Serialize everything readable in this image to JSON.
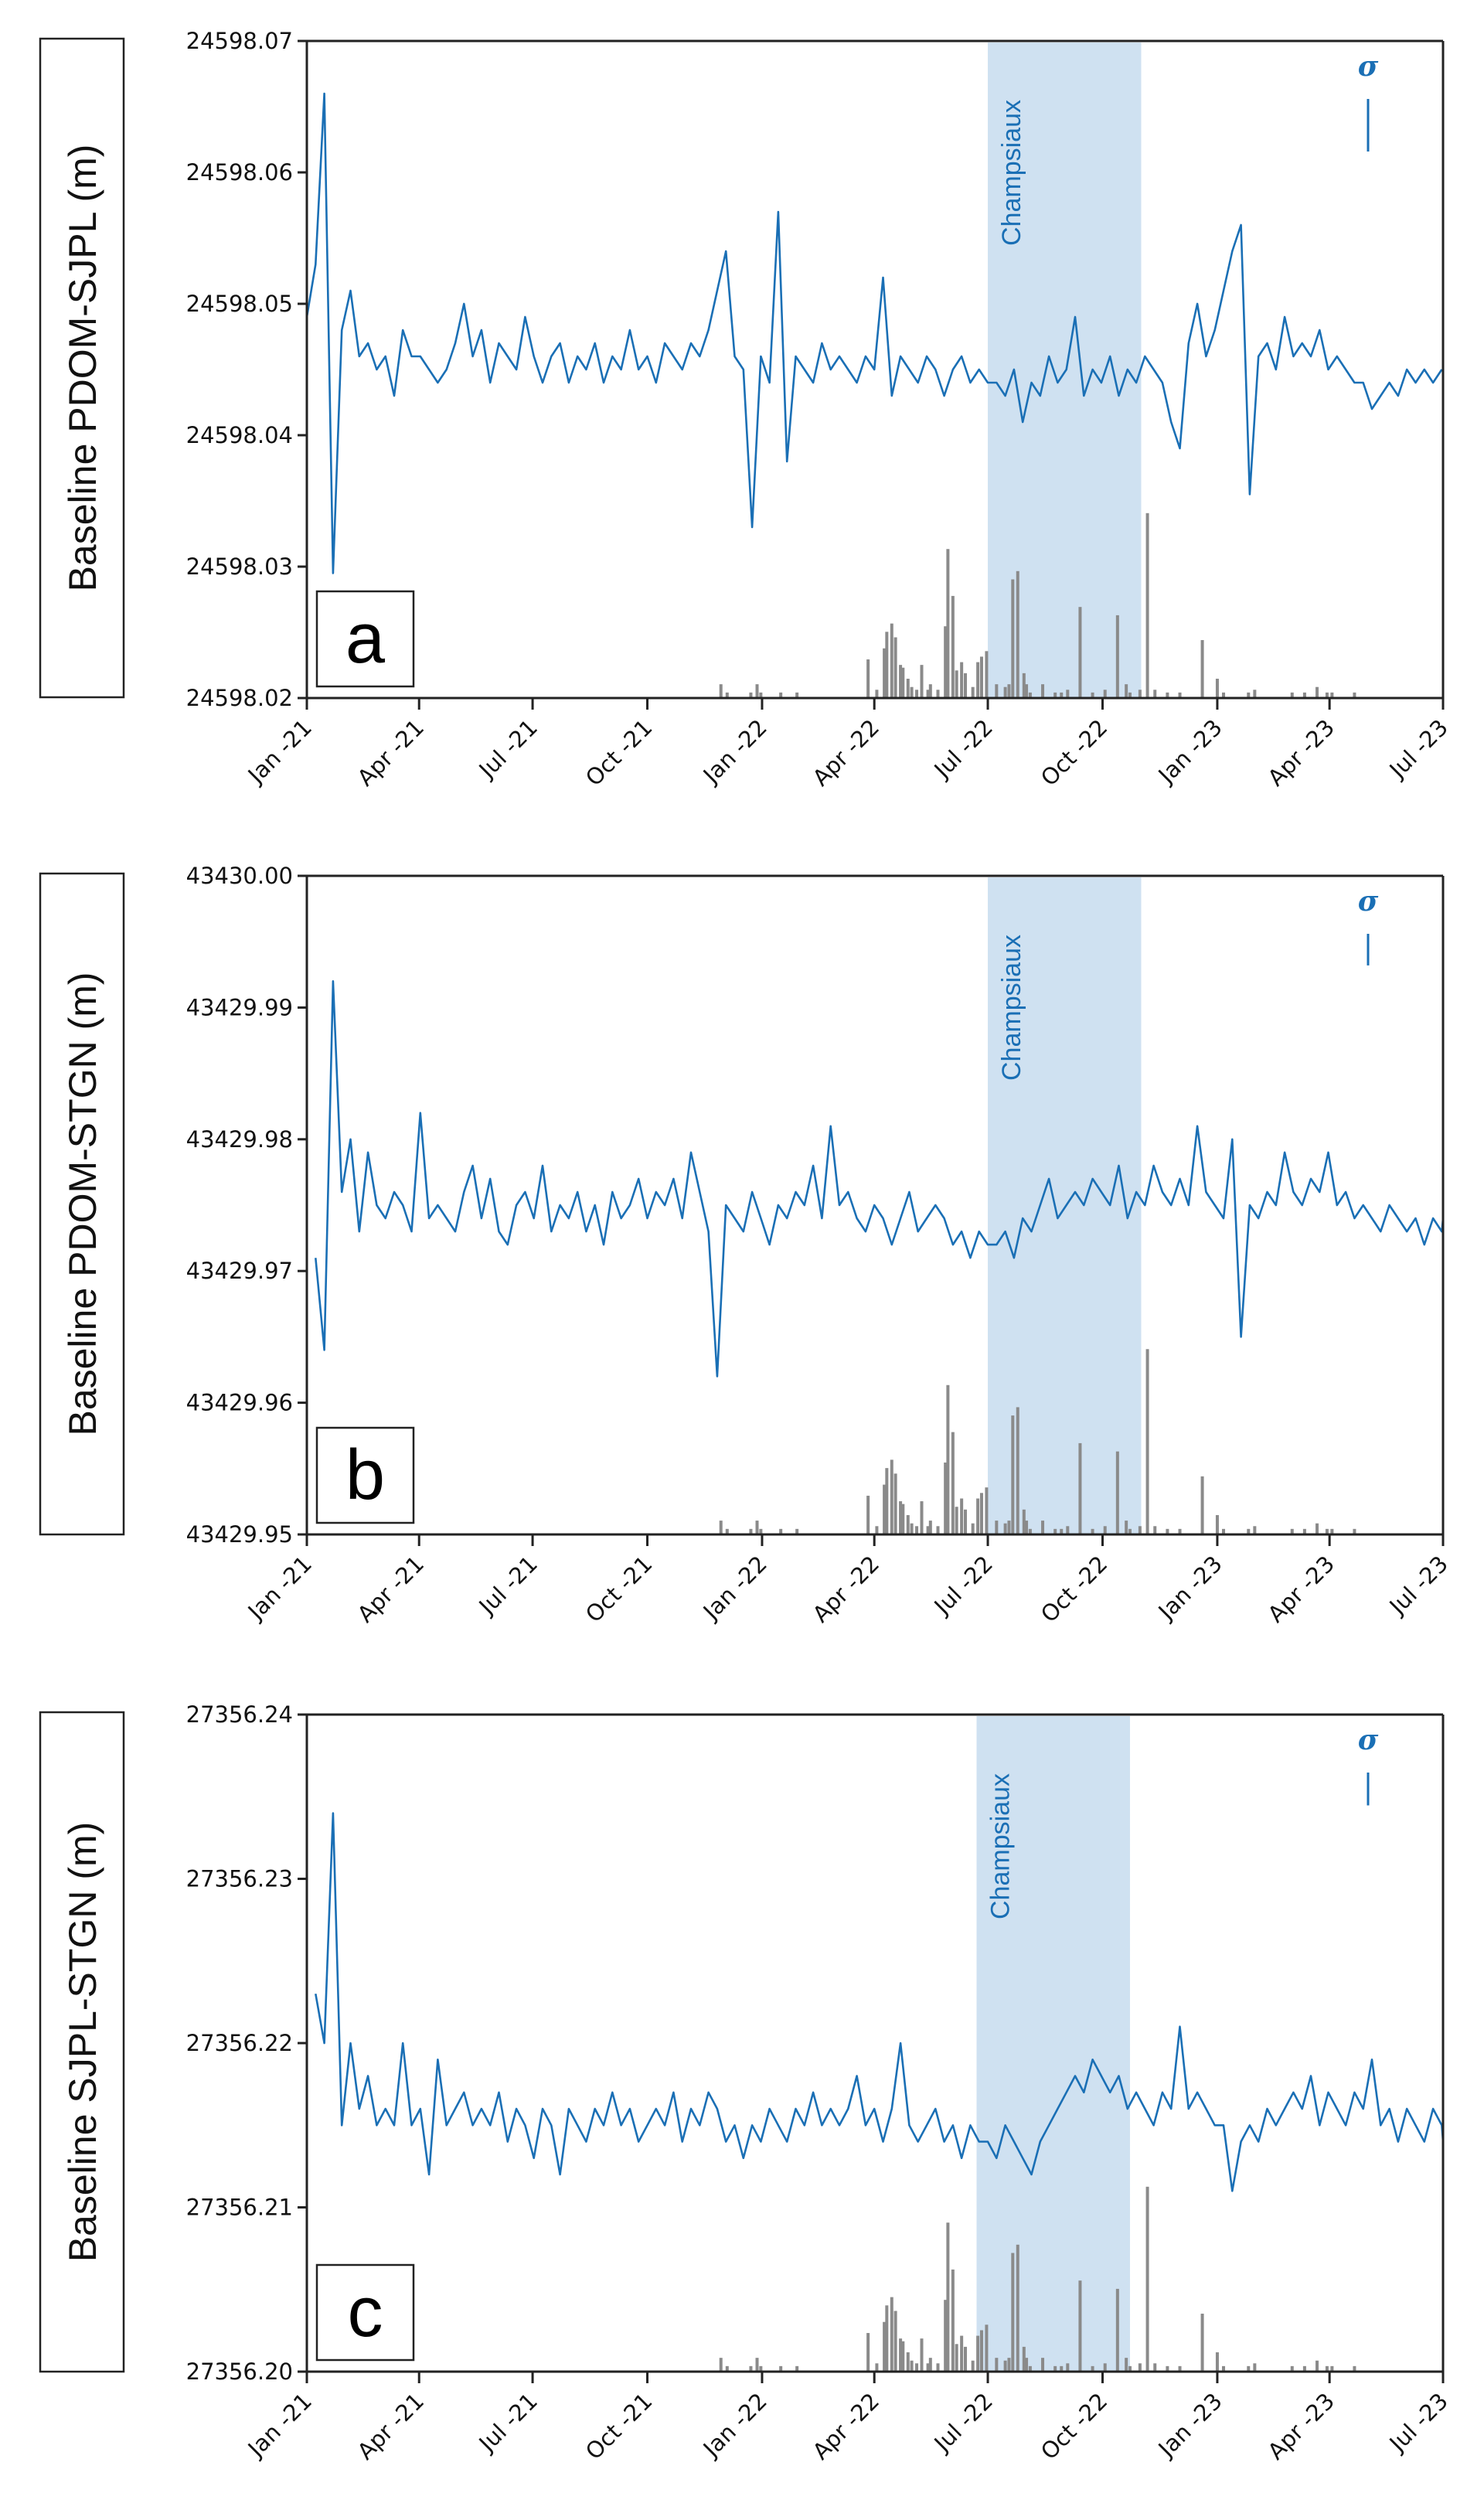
{
  "chart_data": [
    {
      "type": "line",
      "panel_letter": "a",
      "ylabel": "Baseline PDOM-SJPL (m)",
      "ylim": [
        24598.02,
        24598.07
      ],
      "yticks": [
        "24598.02",
        "24598.03",
        "24598.04",
        "24598.05",
        "24598.06",
        "24598.07"
      ],
      "xticks": [
        "Jan -21",
        "Apr -21",
        "Jul -21",
        "Oct -21",
        "Jan -22",
        "Apr -22",
        "Jul -22",
        "Oct -22",
        "Jan -23",
        "Apr -23",
        "Jul -23"
      ],
      "xlim_days": [
        0,
        911
      ],
      "shaded_region": {
        "label": "Champsiaux",
        "start_day": 546,
        "end_day": 669
      },
      "sigma": {
        "label": "σ",
        "value_m": 0.004
      },
      "series": [
        {
          "name": "baseline",
          "x_start_day": 0,
          "x_step_days": 7,
          "values": [
            24598.049,
            24598.053,
            24598.066,
            24598.0295,
            24598.048,
            24598.051,
            24598.046,
            24598.047,
            24598.045,
            24598.046,
            24598.043,
            24598.048,
            24598.046,
            24598.046,
            24598.045,
            24598.044,
            24598.045,
            24598.047,
            24598.05,
            24598.046,
            24598.048,
            24598.044,
            24598.047,
            24598.046,
            24598.045,
            24598.049,
            24598.046,
            24598.044,
            24598.046,
            24598.047,
            24598.044,
            24598.046,
            24598.045,
            24598.047,
            24598.044,
            24598.046,
            24598.045,
            24598.048,
            24598.045,
            24598.046,
            24598.044,
            24598.047,
            24598.046,
            24598.045,
            24598.047,
            24598.046,
            24598.048,
            24598.051,
            24598.054,
            24598.046,
            24598.045,
            24598.033,
            24598.046,
            24598.044,
            24598.057,
            24598.038,
            24598.046,
            24598.045,
            24598.044,
            24598.047,
            24598.045,
            24598.046,
            24598.045,
            24598.044,
            24598.046,
            24598.045,
            24598.052,
            24598.043,
            24598.046,
            24598.045,
            24598.044,
            24598.046,
            24598.045,
            24598.043,
            24598.045,
            24598.046,
            24598.044,
            24598.045,
            24598.044,
            24598.044,
            24598.043,
            24598.045,
            24598.041,
            24598.044,
            24598.043,
            24598.046,
            24598.044,
            24598.045,
            24598.049,
            24598.043,
            24598.045,
            24598.044,
            24598.046,
            24598.043,
            24598.045,
            24598.044,
            24598.046,
            24598.045,
            24598.044,
            24598.041,
            24598.039,
            24598.047,
            24598.05,
            24598.046,
            24598.048,
            24598.051,
            24598.054,
            24598.056,
            24598.0355,
            24598.046,
            24598.047,
            24598.045,
            24598.049,
            24598.046,
            24598.047,
            24598.046,
            24598.048,
            24598.045,
            24598.046,
            24598.045,
            24598.044,
            24598.044,
            24598.042,
            24598.043,
            24598.044,
            24598.043,
            24598.045,
            24598.044,
            24598.045,
            24598.044,
            24598.045
          ]
        }
      ]
    },
    {
      "type": "line",
      "panel_letter": "b",
      "ylabel": "Baseline PDOM-STGN (m)",
      "ylim": [
        43429.95,
        43430.0
      ],
      "yticks": [
        "43429.95",
        "43429.96",
        "43429.97",
        "43429.98",
        "43429.99",
        "43430.00"
      ],
      "xticks": [
        "Jan -21",
        "Apr -21",
        "Jul -21",
        "Oct -21",
        "Jan -22",
        "Apr -22",
        "Jul -22",
        "Oct -22",
        "Jan -23",
        "Apr -23",
        "Jul -23"
      ],
      "xlim_days": [
        0,
        911
      ],
      "shaded_region": {
        "label": "Champsiaux",
        "start_day": 546,
        "end_day": 669
      },
      "sigma": {
        "label": "σ",
        "value_m": 0.0024
      },
      "series": [
        {
          "name": "baseline",
          "x_start_day": 7,
          "x_step_days": 7,
          "values": [
            43429.971,
            43429.964,
            43429.992,
            43429.976,
            43429.98,
            43429.973,
            43429.979,
            43429.975,
            43429.974,
            43429.976,
            43429.975,
            43429.973,
            43429.982,
            43429.974,
            43429.975,
            43429.974,
            43429.973,
            43429.976,
            43429.978,
            43429.974,
            43429.977,
            43429.973,
            43429.972,
            43429.975,
            43429.976,
            43429.974,
            43429.978,
            43429.973,
            43429.975,
            43429.974,
            43429.976,
            43429.973,
            43429.975,
            43429.972,
            43429.976,
            43429.974,
            43429.975,
            43429.977,
            43429.974,
            43429.976,
            43429.975,
            43429.977,
            43429.974,
            43429.979,
            43429.976,
            43429.973,
            43429.962,
            43429.975,
            43429.974,
            43429.973,
            43429.976,
            43429.974,
            43429.972,
            43429.975,
            43429.974,
            43429.976,
            43429.975,
            43429.978,
            43429.974,
            43429.981,
            43429.975,
            43429.976,
            43429.974,
            43429.973,
            43429.975,
            43429.974,
            43429.972,
            43429.974,
            43429.976,
            43429.973,
            43429.974,
            43429.975,
            43429.974,
            43429.972,
            43429.973,
            43429.971,
            43429.973,
            43429.972,
            43429.972,
            43429.973,
            43429.971,
            43429.974,
            43429.973,
            43429.975,
            43429.977,
            43429.974,
            43429.975,
            43429.976,
            43429.975,
            43429.977,
            43429.976,
            43429.975,
            43429.978,
            43429.974,
            43429.976,
            43429.975,
            43429.978,
            43429.976,
            43429.975,
            43429.977,
            43429.975,
            43429.981,
            43429.976,
            43429.975,
            43429.974,
            43429.98,
            43429.965,
            43429.975,
            43429.974,
            43429.976,
            43429.975,
            43429.979,
            43429.976,
            43429.975,
            43429.977,
            43429.976,
            43429.979,
            43429.975,
            43429.976,
            43429.974,
            43429.975,
            43429.974,
            43429.973,
            43429.975,
            43429.974,
            43429.973,
            43429.974,
            43429.972,
            43429.974,
            43429.973,
            43429.974
          ]
        }
      ]
    },
    {
      "type": "line",
      "panel_letter": "c",
      "ylabel": "Baseline SJPL-STGN (m)",
      "ylim": [
        27356.2,
        27356.24
      ],
      "yticks": [
        "27356.20",
        "27356.21",
        "27356.22",
        "27356.23",
        "27356.24"
      ],
      "xticks": [
        "Jan -21",
        "Apr -21",
        "Jul -21",
        "Oct -21",
        "Jan -22",
        "Apr -22",
        "Jul -22",
        "Oct -22",
        "Jan -23",
        "Apr -23",
        "Jul -23"
      ],
      "xlim_days": [
        0,
        911
      ],
      "shaded_region": {
        "label": "Champsiaux",
        "start_day": 537,
        "end_day": 660
      },
      "sigma": {
        "label": "σ",
        "value_m": 0.002
      },
      "series": [
        {
          "name": "baseline",
          "x_start_day": 7,
          "x_step_days": 7,
          "values": [
            27356.223,
            27356.22,
            27356.234,
            27356.215,
            27356.22,
            27356.216,
            27356.218,
            27356.215,
            27356.216,
            27356.215,
            27356.22,
            27356.215,
            27356.216,
            27356.212,
            27356.219,
            27356.215,
            27356.216,
            27356.217,
            27356.215,
            27356.216,
            27356.215,
            27356.217,
            27356.214,
            27356.216,
            27356.215,
            27356.213,
            27356.216,
            27356.215,
            27356.212,
            27356.216,
            27356.215,
            27356.214,
            27356.216,
            27356.215,
            27356.217,
            27356.215,
            27356.216,
            27356.214,
            27356.215,
            27356.216,
            27356.215,
            27356.217,
            27356.214,
            27356.216,
            27356.215,
            27356.217,
            27356.216,
            27356.214,
            27356.215,
            27356.213,
            27356.215,
            27356.214,
            27356.216,
            27356.215,
            27356.214,
            27356.216,
            27356.215,
            27356.217,
            27356.215,
            27356.216,
            27356.215,
            27356.216,
            27356.218,
            27356.215,
            27356.216,
            27356.214,
            27356.216,
            27356.22,
            27356.215,
            27356.214,
            27356.215,
            27356.216,
            27356.214,
            27356.215,
            27356.213,
            27356.215,
            27356.214,
            27356.214,
            27356.213,
            27356.215,
            27356.214,
            27356.213,
            27356.212,
            27356.214,
            27356.215,
            27356.216,
            27356.217,
            27356.218,
            27356.217,
            27356.219,
            27356.218,
            27356.217,
            27356.218,
            27356.216,
            27356.217,
            27356.216,
            27356.215,
            27356.217,
            27356.216,
            27356.221,
            27356.216,
            27356.217,
            27356.216,
            27356.215,
            27356.215,
            27356.211,
            27356.214,
            27356.215,
            27356.214,
            27356.216,
            27356.215,
            27356.216,
            27356.217,
            27356.216,
            27356.218,
            27356.215,
            27356.217,
            27356.216,
            27356.215,
            27356.217,
            27356.216,
            27356.219,
            27356.215,
            27356.216,
            27356.214,
            27356.216,
            27356.215,
            27356.214,
            27356.216,
            27356.215,
            27356.214
          ]
        }
      ]
    }
  ],
  "bars": {
    "color": "#8a8a8a",
    "note_fraction_of_axis": "bar heights as fraction of panel height",
    "days": [
      332,
      337,
      356,
      361,
      364,
      380,
      393,
      450,
      457,
      463,
      465,
      469,
      472,
      476,
      478,
      482,
      485,
      489,
      493,
      498,
      500,
      506,
      512,
      514,
      518,
      521,
      525,
      528,
      534,
      538,
      541,
      545,
      553,
      560,
      563,
      566,
      570,
      575,
      577,
      580,
      590,
      600,
      605,
      610,
      620,
      630,
      640,
      650,
      657,
      660,
      668,
      674,
      680,
      690,
      700,
      718,
      730,
      735,
      755,
      760,
      790,
      800,
      810,
      818,
      822,
      840
    ],
    "values": [
      0.05,
      0.02,
      0.02,
      0.05,
      0.02,
      0.02,
      0.02,
      0.14,
      0.03,
      0.18,
      0.24,
      0.27,
      0.22,
      0.12,
      0.11,
      0.07,
      0.04,
      0.03,
      0.12,
      0.03,
      0.05,
      0.03,
      0.26,
      0.54,
      0.37,
      0.1,
      0.13,
      0.09,
      0.04,
      0.13,
      0.15,
      0.17,
      0.05,
      0.04,
      0.05,
      0.43,
      0.46,
      0.09,
      0.05,
      0.02,
      0.05,
      0.02,
      0.02,
      0.03,
      0.33,
      0.02,
      0.03,
      0.3,
      0.05,
      0.02,
      0.03,
      0.67,
      0.03,
      0.02,
      0.02,
      0.21,
      0.07,
      0.02,
      0.02,
      0.03,
      0.02,
      0.02,
      0.04,
      0.02,
      0.02,
      0.02
    ]
  },
  "colors": {
    "line": "#1a6fb5",
    "shade": "#cfe1f1",
    "bars": "#8a8a8a",
    "axis": "#222222"
  }
}
